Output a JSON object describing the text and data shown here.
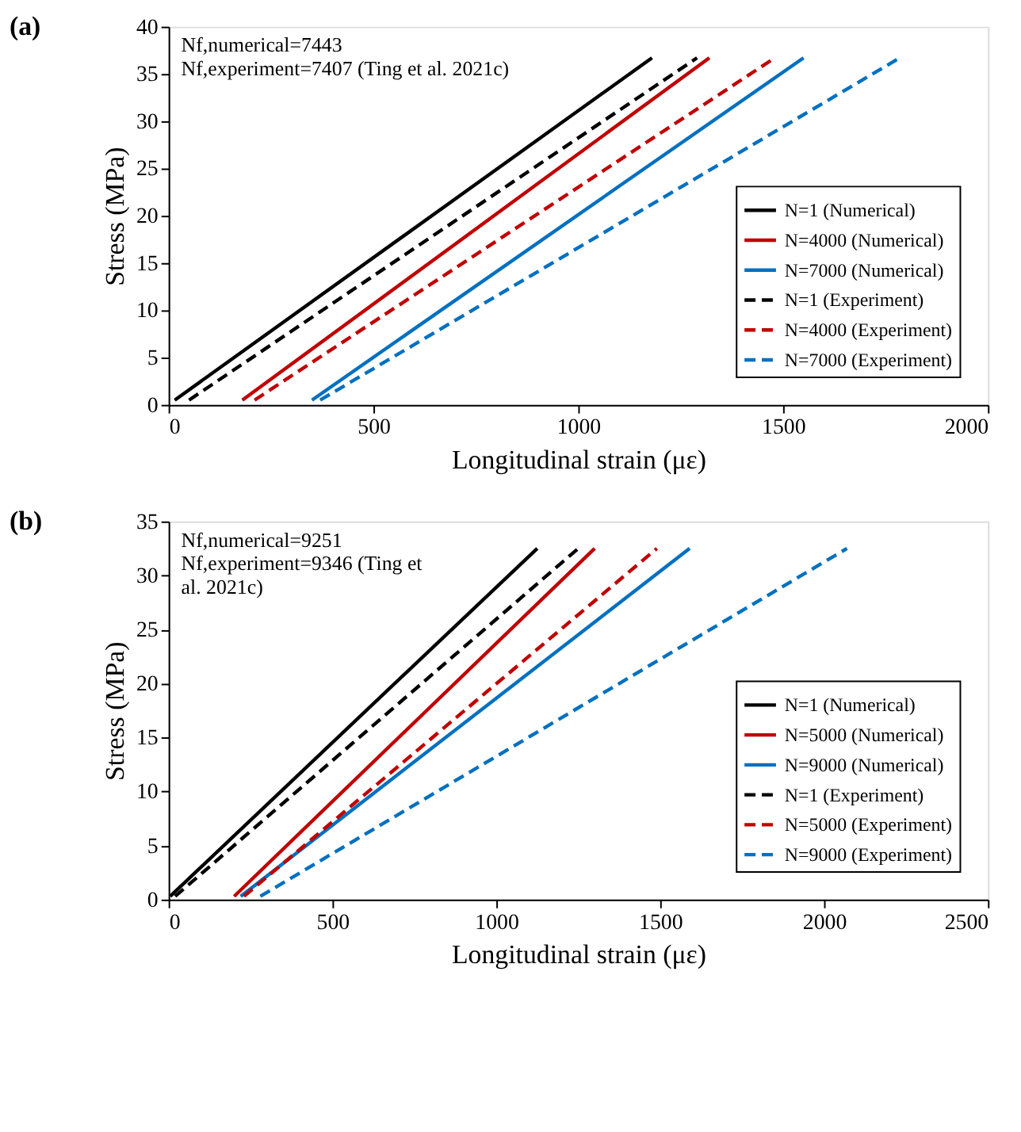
{
  "chart_data": [
    {
      "type": "line",
      "title": "(a)",
      "xlabel": "Longitudinal strain (με)",
      "ylabel": "Stress (MPa)",
      "annotations": [
        "Nf,numerical=7443",
        "Nf,experiment=7407 (Ting et al. 2021c)"
      ],
      "xlim": [
        0,
        2000
      ],
      "xticks": [
        0,
        500,
        1000,
        1500,
        2000
      ],
      "ylim": [
        0,
        40
      ],
      "yticks": [
        0,
        5,
        10,
        15,
        20,
        25,
        30,
        35,
        40
      ],
      "grid": false,
      "legend": "bottom right",
      "marker": "none",
      "series": [
        {
          "name": "N=1 (Numerical)",
          "color": "#000000",
          "line_style": "solid",
          "x": [
            15,
            1180
          ],
          "values": [
            0.5,
            36.7
          ]
        },
        {
          "name": "N=4000 (Numerical)",
          "color": "#c00000",
          "line_style": "solid",
          "x": [
            180,
            1320
          ],
          "values": [
            0.5,
            36.7
          ]
        },
        {
          "name": "N=7000 (Numerical)",
          "color": "#0070c0",
          "line_style": "solid",
          "x": [
            350,
            1550
          ],
          "values": [
            0.5,
            36.7
          ]
        },
        {
          "name": "N=1 (Experiment)",
          "color": "#000000",
          "line_style": "dashed",
          "x": [
            50,
            1290
          ],
          "values": [
            0.5,
            36.7
          ]
        },
        {
          "name": "N=4000 (Experiment)",
          "color": "#c00000",
          "line_style": "dashed",
          "x": [
            210,
            1480
          ],
          "values": [
            0.5,
            36.7
          ]
        },
        {
          "name": "N=7000 (Experiment)",
          "color": "#0070c0",
          "line_style": "dashed",
          "x": [
            370,
            1785
          ],
          "values": [
            0.5,
            36.7
          ]
        }
      ]
    },
    {
      "type": "line",
      "title": "(b)",
      "xlabel": "Longitudinal strain (με)",
      "ylabel": "Stress (MPa)",
      "annotations": [
        "Nf,numerical=9251",
        "Nf,experiment=9346 (Ting et al. 2021c)"
      ],
      "xlim": [
        0,
        2500
      ],
      "xticks": [
        0,
        500,
        1000,
        1500,
        2000,
        2500
      ],
      "ylim": [
        0,
        35
      ],
      "yticks": [
        0,
        5,
        10,
        15,
        20,
        25,
        30,
        35
      ],
      "grid": false,
      "legend": "bottom right",
      "marker": "none",
      "series": [
        {
          "name": "N=1 (Numerical)",
          "color": "#000000",
          "line_style": "solid",
          "x": [
            5,
            1125
          ],
          "values": [
            0.3,
            32.5
          ]
        },
        {
          "name": "N=5000 (Numerical)",
          "color": "#c00000",
          "line_style": "solid",
          "x": [
            200,
            1300
          ],
          "values": [
            0.3,
            32.5
          ]
        },
        {
          "name": "N=9000 (Numerical)",
          "color": "#0070c0",
          "line_style": "solid",
          "x": [
            220,
            1590
          ],
          "values": [
            0.3,
            32.5
          ]
        },
        {
          "name": "N=1 (Experiment)",
          "color": "#000000",
          "line_style": "dashed",
          "x": [
            20,
            1250
          ],
          "values": [
            0.3,
            32.5
          ]
        },
        {
          "name": "N=5000 (Experiment)",
          "color": "#c00000",
          "line_style": "dashed",
          "x": [
            230,
            1490
          ],
          "values": [
            0.3,
            32.5
          ]
        },
        {
          "name": "N=9000 (Experiment)",
          "color": "#0070c0",
          "line_style": "dashed",
          "x": [
            280,
            2070
          ],
          "values": [
            0.3,
            32.5
          ]
        }
      ]
    }
  ]
}
